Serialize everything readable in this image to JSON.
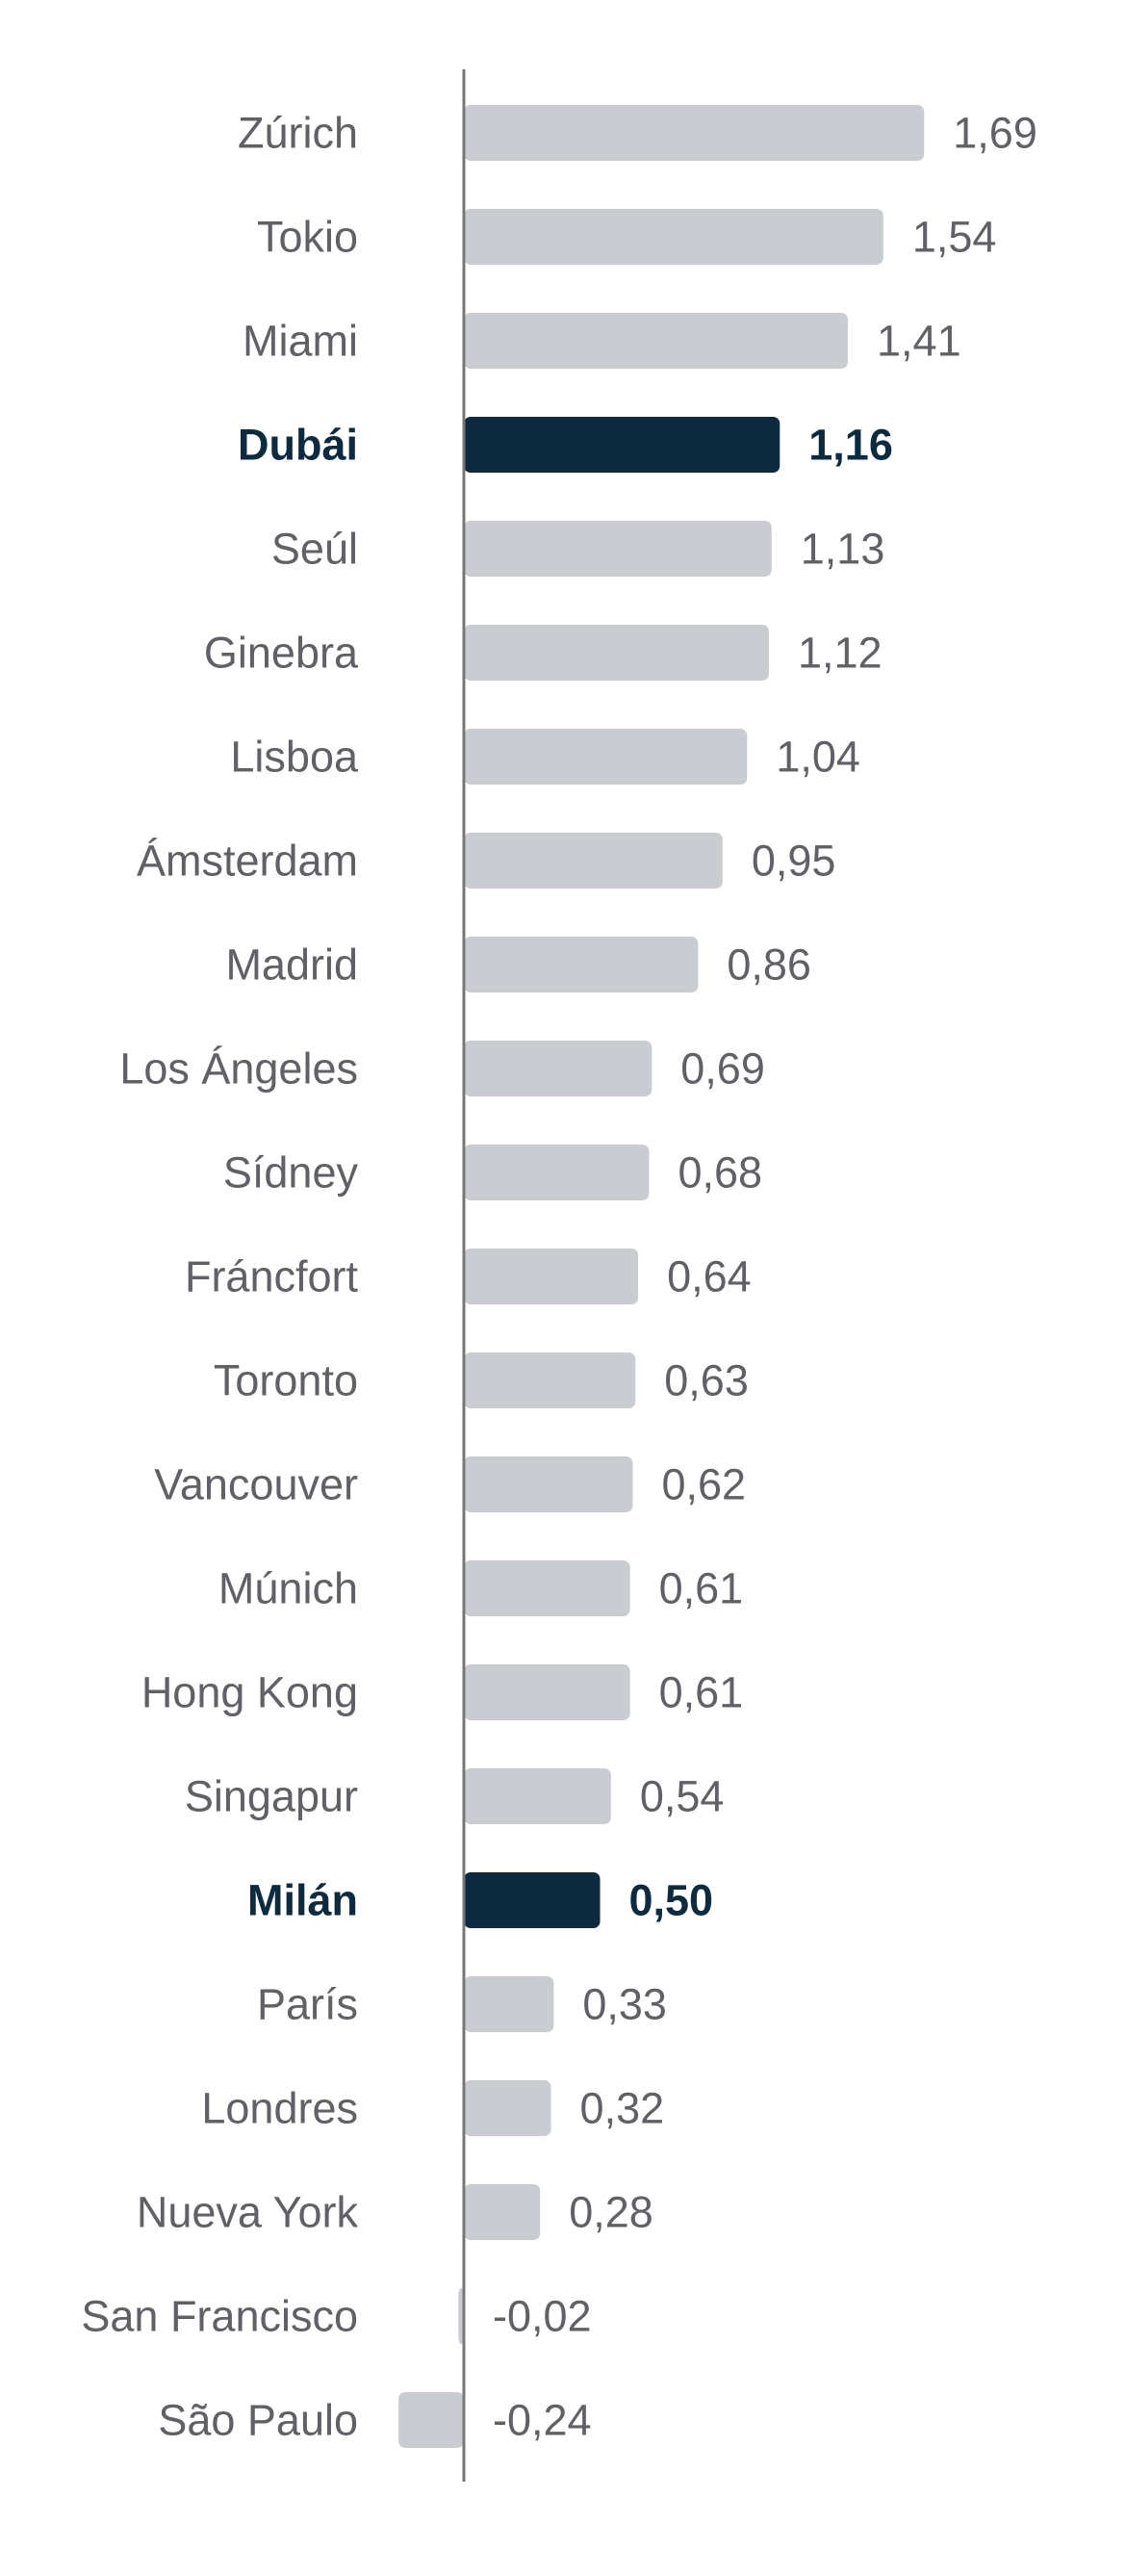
{
  "chart_data": {
    "type": "bar",
    "orientation": "horizontal",
    "title": "",
    "xlabel": "",
    "ylabel": "",
    "categories": [
      "Zúrich",
      "Tokio",
      "Miami",
      "Dubái",
      "Seúl",
      "Ginebra",
      "Lisboa",
      "Ámsterdam",
      "Madrid",
      "Los Ángeles",
      "Sídney",
      "Fráncfort",
      "Toronto",
      "Vancouver",
      "Múnich",
      "Hong Kong",
      "Singapur",
      "Milán",
      "París",
      "Londres",
      "Nueva York",
      "San Francisco",
      "São Paulo"
    ],
    "values": [
      1.69,
      1.54,
      1.41,
      1.16,
      1.13,
      1.12,
      1.04,
      0.95,
      0.86,
      0.69,
      0.68,
      0.64,
      0.63,
      0.62,
      0.61,
      0.61,
      0.54,
      0.5,
      0.33,
      0.32,
      0.28,
      -0.02,
      -0.24
    ],
    "value_labels": [
      "1,69",
      "1,54",
      "1,41",
      "1,16",
      "1,13",
      "1,12",
      "1,04",
      "0,95",
      "0,86",
      "0,69",
      "0,68",
      "0,64",
      "0,63",
      "0,62",
      "0,61",
      "0,61",
      "0,54",
      "0,50",
      "0,33",
      "0,32",
      "0,28",
      "-0,02",
      "-0,24"
    ],
    "highlighted": [
      "Dubái",
      "Milán"
    ],
    "grid": false,
    "legend": "none",
    "colors": {
      "bar": "#c9ccd1",
      "highlight": "#0e2a3f",
      "axis": "#777777",
      "label": "#5f6166"
    }
  }
}
